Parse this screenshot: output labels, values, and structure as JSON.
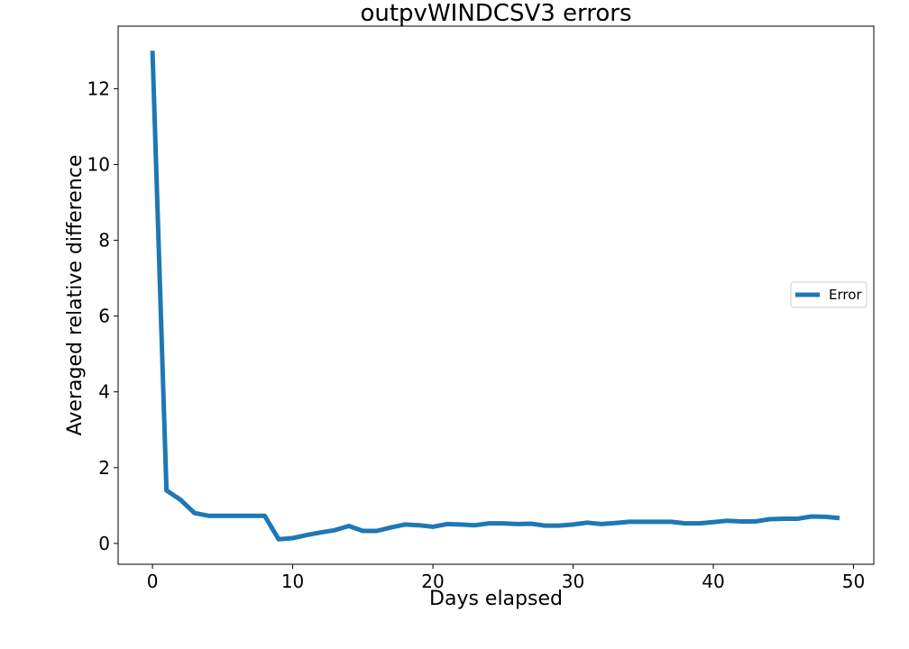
{
  "chart_data": {
    "type": "line",
    "title": "outpvWINDCSV3 errors",
    "xlabel": "Days elapsed",
    "ylabel": "Averaged relative difference",
    "xlim": [
      -2.45,
      51.45
    ],
    "ylim": [
      -0.55,
      13.65
    ],
    "xticks": [
      0,
      10,
      20,
      30,
      40,
      50
    ],
    "yticks": [
      0,
      2,
      4,
      6,
      8,
      10,
      12
    ],
    "grid": false,
    "legend_position": "center-right",
    "series": [
      {
        "name": "Error",
        "color": "#1f77b4",
        "x": [
          0,
          1,
          2,
          3,
          4,
          5,
          6,
          7,
          8,
          9,
          10,
          11,
          12,
          13,
          14,
          15,
          16,
          17,
          18,
          19,
          20,
          21,
          22,
          23,
          24,
          25,
          26,
          27,
          28,
          29,
          30,
          31,
          32,
          33,
          34,
          35,
          36,
          37,
          38,
          39,
          40,
          41,
          42,
          43,
          44,
          45,
          46,
          47,
          48,
          49
        ],
        "y": [
          13.0,
          1.4,
          1.15,
          0.8,
          0.73,
          0.73,
          0.73,
          0.73,
          0.73,
          0.11,
          0.14,
          0.22,
          0.29,
          0.35,
          0.46,
          0.33,
          0.33,
          0.42,
          0.5,
          0.48,
          0.44,
          0.51,
          0.5,
          0.48,
          0.53,
          0.53,
          0.51,
          0.52,
          0.47,
          0.47,
          0.5,
          0.55,
          0.51,
          0.54,
          0.57,
          0.57,
          0.57,
          0.57,
          0.53,
          0.53,
          0.56,
          0.6,
          0.58,
          0.58,
          0.64,
          0.65,
          0.65,
          0.71,
          0.7,
          0.67
        ]
      }
    ]
  }
}
